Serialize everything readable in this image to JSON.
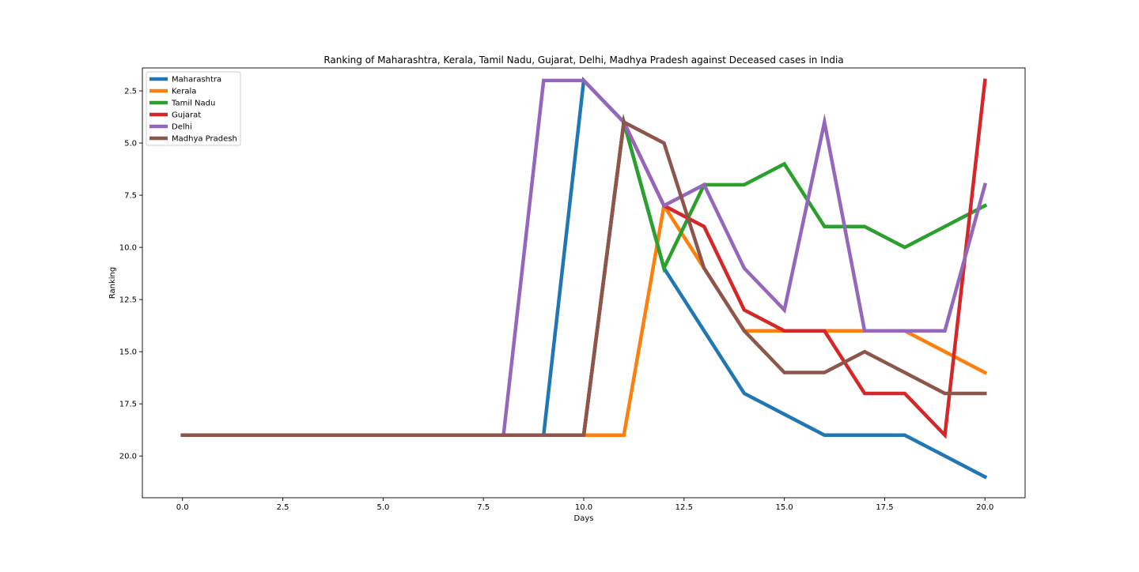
{
  "chart_data": {
    "type": "line",
    "title": "Ranking of Maharashtra, Kerala, Tamil Nadu, Gujarat, Delhi, Madhya Pradesh against Deceased cases in India",
    "xlabel": "Days",
    "ylabel": "Ranking",
    "xlim": [
      -1,
      21
    ],
    "ylim": [
      22.0,
      1.4
    ],
    "y_inverted": true,
    "grid": false,
    "legend_position": "upper left",
    "xticks": [
      0.0,
      2.5,
      5.0,
      7.5,
      10.0,
      12.5,
      15.0,
      17.5,
      20.0
    ],
    "xtick_labels": [
      "0.0",
      "2.5",
      "5.0",
      "7.5",
      "10.0",
      "12.5",
      "15.0",
      "17.5",
      "20.0"
    ],
    "yticks": [
      2.5,
      5.0,
      7.5,
      10.0,
      12.5,
      15.0,
      17.5,
      20.0
    ],
    "ytick_labels": [
      "2.5",
      "5.0",
      "7.5",
      "10.0",
      "12.5",
      "15.0",
      "17.5",
      "20.0"
    ],
    "x": [
      0,
      1,
      2,
      3,
      4,
      5,
      6,
      7,
      8,
      9,
      10,
      11,
      12,
      13,
      14,
      15,
      16,
      17,
      18,
      19,
      20
    ],
    "series": [
      {
        "name": "Maharashtra",
        "color": "#1f77b4",
        "values": [
          19,
          19,
          19,
          19,
          19,
          19,
          19,
          19,
          19,
          19,
          2,
          4,
          11,
          14,
          17,
          18,
          19,
          19,
          19,
          20,
          21
        ]
      },
      {
        "name": "Kerala",
        "color": "#ff7f0e",
        "values": [
          19,
          19,
          19,
          19,
          19,
          19,
          19,
          19,
          19,
          19,
          19,
          19,
          8,
          11,
          14,
          14,
          14,
          14,
          14,
          15,
          16
        ]
      },
      {
        "name": "Tamil Nadu",
        "color": "#2ca02c",
        "values": [
          19,
          19,
          19,
          19,
          19,
          19,
          19,
          19,
          19,
          19,
          19,
          4,
          11,
          7,
          7,
          6,
          9,
          9,
          10,
          9,
          8
        ]
      },
      {
        "name": "Gujarat",
        "color": "#d62728",
        "values": [
          19,
          19,
          19,
          19,
          19,
          19,
          19,
          19,
          19,
          19,
          19,
          4,
          8,
          9,
          13,
          14,
          14,
          17,
          17,
          19,
          2
        ]
      },
      {
        "name": "Delhi",
        "color": "#9467bd",
        "values": [
          19,
          19,
          19,
          19,
          19,
          19,
          19,
          19,
          19,
          2,
          2,
          4,
          8,
          7,
          11,
          13,
          4,
          14,
          14,
          14,
          7
        ]
      },
      {
        "name": "Madhya Pradesh",
        "color": "#8c564b",
        "values": [
          19,
          19,
          19,
          19,
          19,
          19,
          19,
          19,
          19,
          19,
          19,
          4,
          5,
          11,
          14,
          16,
          16,
          15,
          16,
          17,
          17
        ]
      }
    ]
  }
}
